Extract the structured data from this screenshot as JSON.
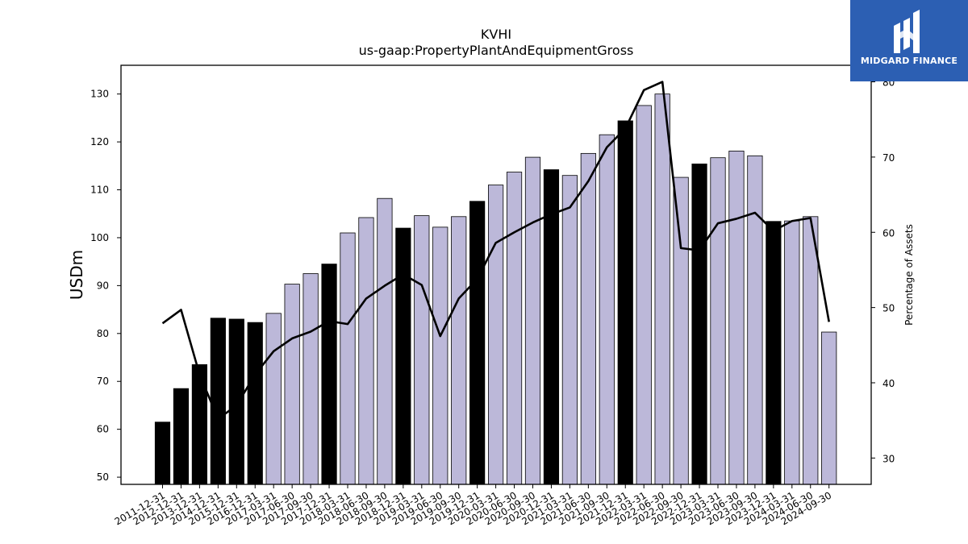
{
  "logo": {
    "text": "MIDGARD FINANCE"
  },
  "colors": {
    "bar_light": "#bcb8d9",
    "bar_dark": "#000000",
    "line": "#000000",
    "logo_bg": "#2c5fb3"
  },
  "chart_data": {
    "type": "bar",
    "title": "KVHI",
    "subtitle": "us-gaap:PropertyPlantAndEquipmentGross",
    "ylabel": "USDm",
    "y2label": "Percentage of Assets",
    "ylim": [
      48.5,
      136
    ],
    "y2lim": [
      26.5,
      82.2
    ],
    "yticks": [
      50,
      60,
      70,
      80,
      90,
      100,
      110,
      120,
      130
    ],
    "y2ticks": [
      30,
      40,
      50,
      60,
      70,
      80
    ],
    "grid": false,
    "categories": [
      "2011-12-31",
      "2012-12-31",
      "2013-12-31",
      "2014-12-31",
      "2015-12-31",
      "2016-12-31",
      "2017-03-31",
      "2017-06-30",
      "2017-09-30",
      "2017-12-31",
      "2018-03-31",
      "2018-06-30",
      "2018-09-30",
      "2018-12-31",
      "2019-03-31",
      "2019-06-30",
      "2019-09-30",
      "2019-12-31",
      "2020-03-31",
      "2020-06-30",
      "2020-09-30",
      "2020-12-31",
      "2021-03-31",
      "2021-06-30",
      "2021-09-30",
      "2021-12-31",
      "2022-03-31",
      "2022-06-30",
      "2022-09-30",
      "2022-12-31",
      "2023-03-31",
      "2023-06-30",
      "2023-09-30",
      "2023-12-31",
      "2024-03-31",
      "2024-06-30",
      "2024-09-30"
    ],
    "series": [
      {
        "kind": "bar",
        "axis": "left",
        "values": [
          61.5,
          68.5,
          73.5,
          83.2,
          83.0,
          82.3,
          84.2,
          90.3,
          92.5,
          94.5,
          101.0,
          104.2,
          108.2,
          102.0,
          104.6,
          102.2,
          104.4,
          107.6,
          111.0,
          113.7,
          116.8,
          114.2,
          113.0,
          117.6,
          121.5,
          124.4,
          127.6,
          130.0,
          112.6,
          115.4,
          116.7,
          118.1,
          117.1,
          103.4,
          103.5,
          104.4,
          80.3
        ],
        "annual": [
          true,
          true,
          true,
          true,
          true,
          true,
          false,
          false,
          false,
          true,
          false,
          false,
          false,
          true,
          false,
          false,
          false,
          true,
          false,
          false,
          false,
          true,
          false,
          false,
          false,
          true,
          false,
          false,
          false,
          true,
          false,
          false,
          false,
          true,
          false,
          false,
          false
        ]
      },
      {
        "kind": "line",
        "axis": "right",
        "values": [
          47.9,
          49.7,
          41.1,
          35.2,
          37.0,
          41.1,
          44.2,
          45.9,
          46.8,
          48.2,
          47.8,
          51.2,
          52.9,
          54.4,
          53.0,
          46.2,
          51.2,
          53.8,
          58.6,
          60.0,
          61.3,
          62.4,
          63.3,
          66.8,
          71.3,
          73.8,
          78.9,
          80.0,
          57.9,
          57.6,
          61.2,
          61.8,
          62.6,
          60.2,
          61.5,
          61.9,
          48.1
        ]
      }
    ]
  }
}
